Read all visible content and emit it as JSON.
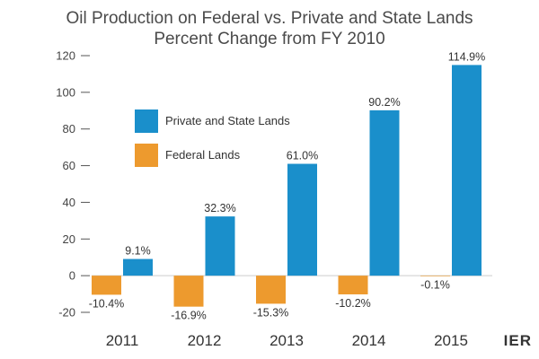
{
  "chart_data": {
    "type": "bar",
    "title": "Oil Production on Federal vs. Private and State Lands",
    "subtitle": "Percent Change from FY 2010",
    "categories": [
      "2011",
      "2012",
      "2013",
      "2014",
      "2015"
    ],
    "series": [
      {
        "name": "Federal Lands",
        "color": "#ED9A2E",
        "values": [
          -10.4,
          -16.9,
          -15.3,
          -10.2,
          -0.1
        ],
        "labels": [
          "-10.4%",
          "-16.9%",
          "-15.3%",
          "-10.2%",
          "-0.1%"
        ]
      },
      {
        "name": "Private and State Lands",
        "color": "#1A8FCB",
        "values": [
          9.1,
          32.3,
          61.0,
          90.2,
          114.9
        ],
        "labels": [
          "9.1%",
          "32.3%",
          "61.0%",
          "90.2%",
          "114.9%"
        ]
      }
    ],
    "ylim": [
      -20,
      120
    ],
    "yticks": [
      -20,
      0,
      20,
      40,
      60,
      80,
      100,
      120
    ],
    "legend_order": [
      "Private and State Lands",
      "Federal Lands"
    ],
    "legend_position": "top-left"
  },
  "logo_text": "IER"
}
